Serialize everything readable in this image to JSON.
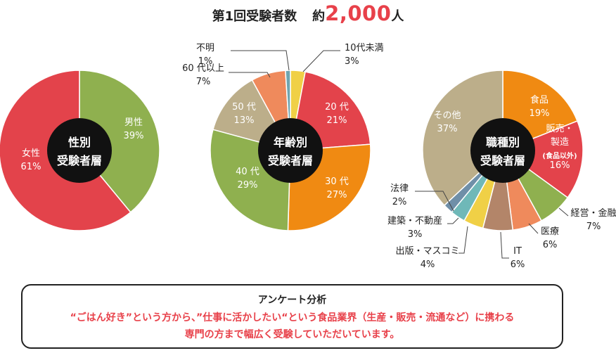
{
  "header": {
    "prefix": "第1回受験者数",
    "suffix_label": "約",
    "count": "2,000",
    "unit": "人"
  },
  "chart_data": [
    {
      "type": "pie",
      "center_label": [
        "性別",
        "受験者層"
      ],
      "slices": [
        {
          "name": "男性",
          "value": 39,
          "label": "39%",
          "color": "#8fb04f"
        },
        {
          "name": "女性",
          "value": 61,
          "label": "61%",
          "color": "#e3434b"
        }
      ]
    },
    {
      "type": "pie",
      "center_label": [
        "年齢別",
        "受験者層"
      ],
      "slices": [
        {
          "name": "10代未満",
          "value": 3,
          "label": "3%",
          "color": "#f0d046"
        },
        {
          "name": "20 代",
          "value": 21,
          "label": "21%",
          "color": "#e3434b"
        },
        {
          "name": "30 代",
          "value": 27,
          "label": "27%",
          "color": "#f08a12"
        },
        {
          "name": "40 代",
          "value": 29,
          "label": "29%",
          "color": "#8fb04f"
        },
        {
          "name": "50 代",
          "value": 13,
          "label": "13%",
          "color": "#bcae8a"
        },
        {
          "name": "60 代以上",
          "value": 7,
          "label": "7%",
          "color": "#ef8a5c"
        },
        {
          "name": "不明",
          "value": 1,
          "label": "1%",
          "color": "#6fa5b0"
        }
      ]
    },
    {
      "type": "pie",
      "center_label": [
        "職種別",
        "受験者層"
      ],
      "slices": [
        {
          "name": "食品",
          "value": 19,
          "label": "19%",
          "color": "#f08a12"
        },
        {
          "name": "販売・製造",
          "note": "(食品以外)",
          "value": 16,
          "label": "16%",
          "color": "#e3434b"
        },
        {
          "name": "経営・金融",
          "value": 7,
          "label": "7%",
          "color": "#8fb04f"
        },
        {
          "name": "医療",
          "value": 6,
          "label": "6%",
          "color": "#ef8a5c"
        },
        {
          "name": "IT",
          "value": 6,
          "label": "6%",
          "color": "#b38569"
        },
        {
          "name": "出版・マスコミ",
          "value": 4,
          "label": "4%",
          "color": "#f0d046"
        },
        {
          "name": "建築・不動産",
          "value": 3,
          "label": "3%",
          "color": "#6fb8b8"
        },
        {
          "name": "法律",
          "value": 2,
          "label": "2%",
          "color": "#6f8fa8"
        },
        {
          "name": "その他",
          "value": 37,
          "label": "37%",
          "color": "#bcae8a"
        }
      ]
    }
  ],
  "analysis": {
    "heading": "アンケート分析",
    "line1": "“ごはん好き”という方から、”仕事に活かしたい“という食品業界（生産・販売・流通など）に携わる",
    "line2": "専門の方まで幅広く受験していただいています。"
  }
}
